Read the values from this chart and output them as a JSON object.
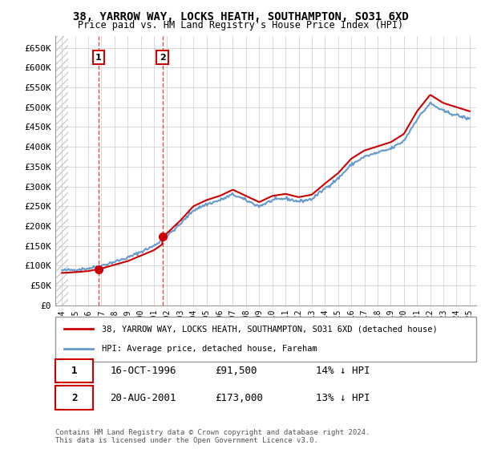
{
  "title": "38, YARROW WAY, LOCKS HEATH, SOUTHAMPTON, SO31 6XD",
  "subtitle": "Price paid vs. HM Land Registry's House Price Index (HPI)",
  "ylabel_ticks": [
    "£0",
    "£50K",
    "£100K",
    "£150K",
    "£200K",
    "£250K",
    "£300K",
    "£350K",
    "£400K",
    "£450K",
    "£500K",
    "£550K",
    "£600K",
    "£650K"
  ],
  "ytick_values": [
    0,
    50000,
    100000,
    150000,
    200000,
    250000,
    300000,
    350000,
    400000,
    450000,
    500000,
    550000,
    600000,
    650000
  ],
  "hpi_color": "#6699cc",
  "price_color": "#cc0000",
  "transaction1": {
    "date_num": 1996.79,
    "price": 91500,
    "label": "1",
    "pct": "14%"
  },
  "transaction2": {
    "date_num": 2001.64,
    "price": 173000,
    "label": "2",
    "pct": "13%"
  },
  "legend_entry1": "38, YARROW WAY, LOCKS HEATH, SOUTHAMPTON, SO31 6XD (detached house)",
  "legend_entry2": "HPI: Average price, detached house, Fareham",
  "table_row1": [
    "1",
    "16-OCT-1996",
    "£91,500",
    "14% ↓ HPI"
  ],
  "table_row2": [
    "2",
    "20-AUG-2001",
    "£173,000",
    "13% ↓ HPI"
  ],
  "footnote": "Contains HM Land Registry data © Crown copyright and database right 2024.\nThis data is licensed under the Open Government Licence v3.0.",
  "xmin": 1993.5,
  "xmax": 2025.5,
  "ymin": 0,
  "ymax": 680000,
  "background_hatch_color": "#e8e8e8",
  "grid_color": "#cccccc"
}
